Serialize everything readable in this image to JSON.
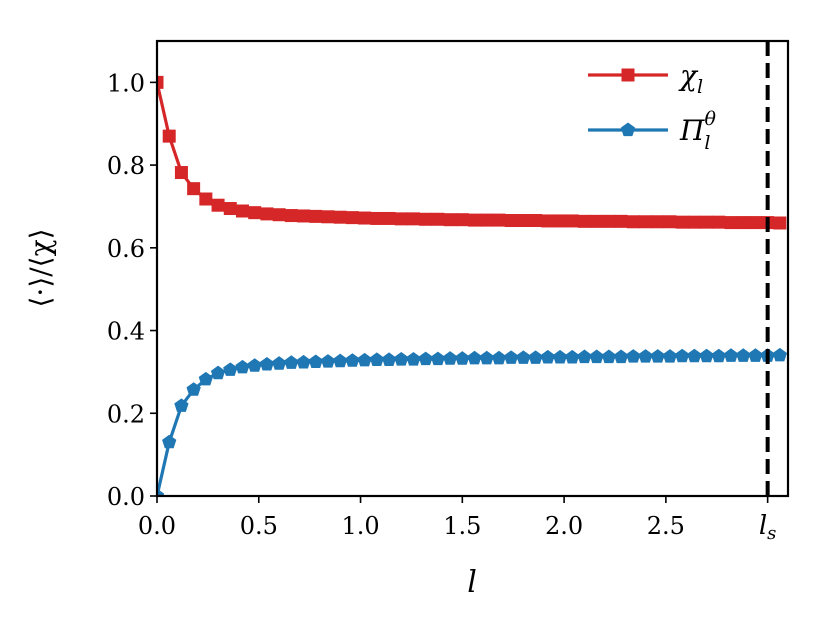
{
  "chart_data": {
    "type": "line",
    "xlabel": "l",
    "ylabel": "⟨·⟩/⟨χ⟩",
    "xlim": [
      0.0,
      3.1
    ],
    "ylim": [
      0.0,
      1.1
    ],
    "x_ticks": [
      0.0,
      0.5,
      1.0,
      1.5,
      2.0,
      2.5
    ],
    "x_tick_labels": [
      "0.0",
      "0.5",
      "1.0",
      "1.5",
      "2.0",
      "2.5"
    ],
    "y_ticks": [
      0.0,
      0.2,
      0.4,
      0.6,
      0.8,
      1.0
    ],
    "y_tick_labels": [
      "0.0",
      "0.2",
      "0.4",
      "0.6",
      "0.8",
      "1.0"
    ],
    "grid": false,
    "legend": {
      "placement": "top-right"
    },
    "vline": {
      "x": 3.0,
      "label": "l_s",
      "label_main": "l",
      "label_sub": "s",
      "style": "dashed",
      "color": "#000000"
    },
    "series": [
      {
        "name": "χ_l",
        "name_main": "χ",
        "name_sub": "l",
        "color": "#d62728",
        "marker": "square",
        "x": [
          0.0,
          0.06,
          0.12,
          0.18,
          0.24,
          0.3,
          0.36,
          0.42,
          0.48,
          0.54,
          0.6,
          0.66,
          0.72,
          0.78,
          0.84,
          0.9,
          0.96,
          1.02,
          1.08,
          1.14,
          1.2,
          1.26,
          1.32,
          1.38,
          1.44,
          1.5,
          1.56,
          1.62,
          1.68,
          1.74,
          1.8,
          1.86,
          1.92,
          1.98,
          2.04,
          2.1,
          2.16,
          2.22,
          2.28,
          2.34,
          2.4,
          2.46,
          2.52,
          2.58,
          2.64,
          2.7,
          2.76,
          2.82,
          2.88,
          2.94,
          3.0,
          3.06
        ],
        "y": [
          1.0,
          0.87,
          0.782,
          0.743,
          0.718,
          0.703,
          0.695,
          0.689,
          0.685,
          0.682,
          0.68,
          0.678,
          0.677,
          0.676,
          0.675,
          0.674,
          0.673,
          0.672,
          0.671,
          0.671,
          0.67,
          0.67,
          0.669,
          0.669,
          0.668,
          0.668,
          0.667,
          0.667,
          0.667,
          0.666,
          0.666,
          0.666,
          0.665,
          0.665,
          0.665,
          0.664,
          0.664,
          0.664,
          0.664,
          0.663,
          0.663,
          0.663,
          0.663,
          0.662,
          0.662,
          0.662,
          0.662,
          0.661,
          0.661,
          0.661,
          0.661,
          0.66
        ]
      },
      {
        "name": "Π_l^θ",
        "name_main": "Π",
        "name_sub": "l",
        "name_sup": "θ",
        "color": "#1f77b4",
        "marker": "pentagon",
        "x": [
          0.0,
          0.06,
          0.12,
          0.18,
          0.24,
          0.3,
          0.36,
          0.42,
          0.48,
          0.54,
          0.6,
          0.66,
          0.72,
          0.78,
          0.84,
          0.9,
          0.96,
          1.02,
          1.08,
          1.14,
          1.2,
          1.26,
          1.32,
          1.38,
          1.44,
          1.5,
          1.56,
          1.62,
          1.68,
          1.74,
          1.8,
          1.86,
          1.92,
          1.98,
          2.04,
          2.1,
          2.16,
          2.22,
          2.28,
          2.34,
          2.4,
          2.46,
          2.52,
          2.58,
          2.64,
          2.7,
          2.76,
          2.82,
          2.88,
          2.94,
          3.0,
          3.06
        ],
        "y": [
          0.0,
          0.13,
          0.218,
          0.257,
          0.282,
          0.297,
          0.305,
          0.311,
          0.315,
          0.318,
          0.32,
          0.322,
          0.323,
          0.324,
          0.325,
          0.326,
          0.327,
          0.328,
          0.329,
          0.329,
          0.33,
          0.33,
          0.331,
          0.331,
          0.332,
          0.332,
          0.333,
          0.333,
          0.333,
          0.334,
          0.334,
          0.334,
          0.335,
          0.335,
          0.335,
          0.336,
          0.336,
          0.336,
          0.336,
          0.337,
          0.337,
          0.337,
          0.337,
          0.338,
          0.338,
          0.338,
          0.338,
          0.339,
          0.339,
          0.339,
          0.339,
          0.34
        ]
      }
    ]
  }
}
